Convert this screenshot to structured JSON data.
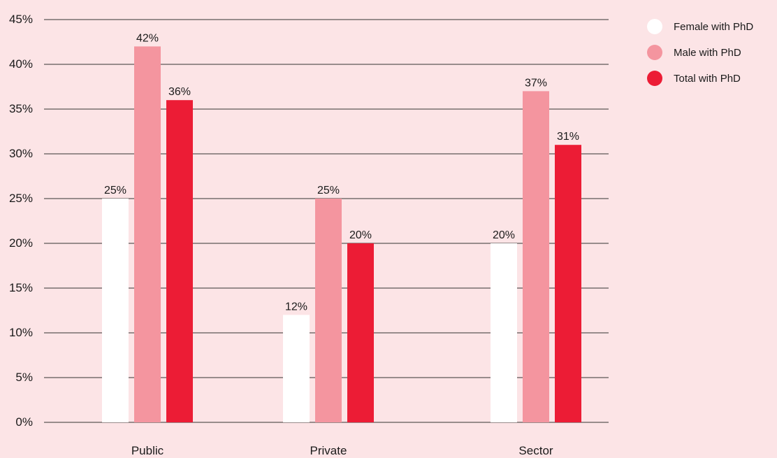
{
  "chart_data": {
    "type": "bar",
    "title": "",
    "xlabel": "",
    "ylabel": "",
    "categories": [
      "Public",
      "Private",
      "Sector"
    ],
    "series": [
      {
        "name": "Female with PhD",
        "values": [
          25,
          12,
          20
        ],
        "labels": [
          "25%",
          "12%",
          "20%"
        ],
        "color": "#ffffff"
      },
      {
        "name": "Male with PhD",
        "values": [
          42,
          25,
          37
        ],
        "labels": [
          "42%",
          "25%",
          "37%"
        ],
        "color": "#f4959f"
      },
      {
        "name": "Total with PhD",
        "values": [
          36,
          20,
          31
        ],
        "labels": [
          "36%",
          "20%",
          "31%"
        ],
        "color": "#ec1c35"
      }
    ],
    "ylim": [
      0,
      45
    ],
    "yticks": [
      0,
      5,
      10,
      15,
      20,
      25,
      30,
      35,
      40,
      45
    ],
    "ytick_labels": [
      "0%",
      "5%",
      "10%",
      "15%",
      "20%",
      "25%",
      "30%",
      "35%",
      "40%",
      "45%"
    ],
    "grid": true,
    "legend_position": "top-right",
    "background_color": "#fce4e6"
  }
}
